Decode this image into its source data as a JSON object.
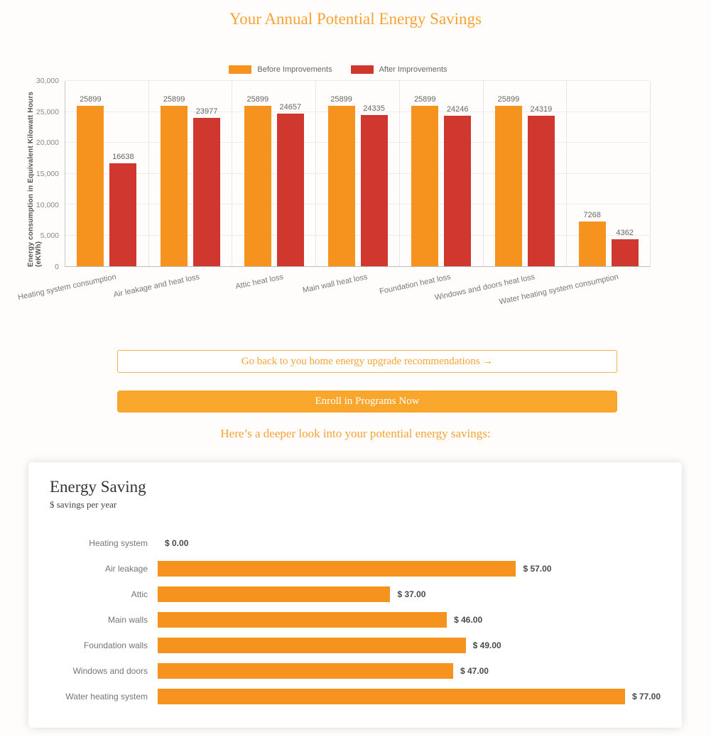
{
  "page": {
    "title": "Your Annual Potential Energy Savings",
    "section_subtitle": "Here’s a deeper look into your potential energy savings:",
    "back_link_label": "Go back to you home energy upgrade recommendations →",
    "enroll_button_label": "Enroll in Programs Now"
  },
  "colors": {
    "heading_orange": "#F7A233",
    "button_fill": "#F8A72C",
    "button_outline_border": "#F5B14C",
    "bar_orange": "#F6921E",
    "bar_red": "#D0372E",
    "grid_line": "#ececec"
  },
  "chart_data": [
    {
      "type": "bar",
      "title": "",
      "ylabel": "Energy consumption in Equivalent Kilowatt Hours (eKWh)",
      "ylim": [
        0,
        30000
      ],
      "ytick_step": 5000,
      "grid": true,
      "legend_position": "top",
      "categories": [
        "Heating system consumption",
        "Air leakage and heat loss",
        "Attic heat loss",
        "Main wall heat loss",
        "Foundation heat loss",
        "Windows and doors heat loss",
        "Water heating system consumption"
      ],
      "series": [
        {
          "name": "Before Improvements",
          "color": "#F6921E",
          "values": [
            25899,
            25899,
            25899,
            25899,
            25899,
            25899,
            7268
          ]
        },
        {
          "name": "After Improvements",
          "color": "#D0372E",
          "values": [
            16638,
            23977,
            24657,
            24335,
            24246,
            24319,
            4362
          ]
        }
      ]
    },
    {
      "type": "bar-horizontal",
      "title": "Energy Saving",
      "subtitle": "$ savings per year",
      "categories": [
        "Heating system",
        "Air leakage",
        "Attic",
        "Main walls",
        "Foundation walls",
        "Windows and doors",
        "Water heating system"
      ],
      "values": [
        0,
        57,
        37,
        46,
        49,
        47,
        77
      ],
      "value_labels": [
        "$ 0.00",
        "$ 57.00",
        "$ 37.00",
        "$ 46.00",
        "$ 49.00",
        "$ 47.00",
        "$ 77.00"
      ],
      "xmax": 80,
      "bar_color": "#F6921E"
    }
  ]
}
